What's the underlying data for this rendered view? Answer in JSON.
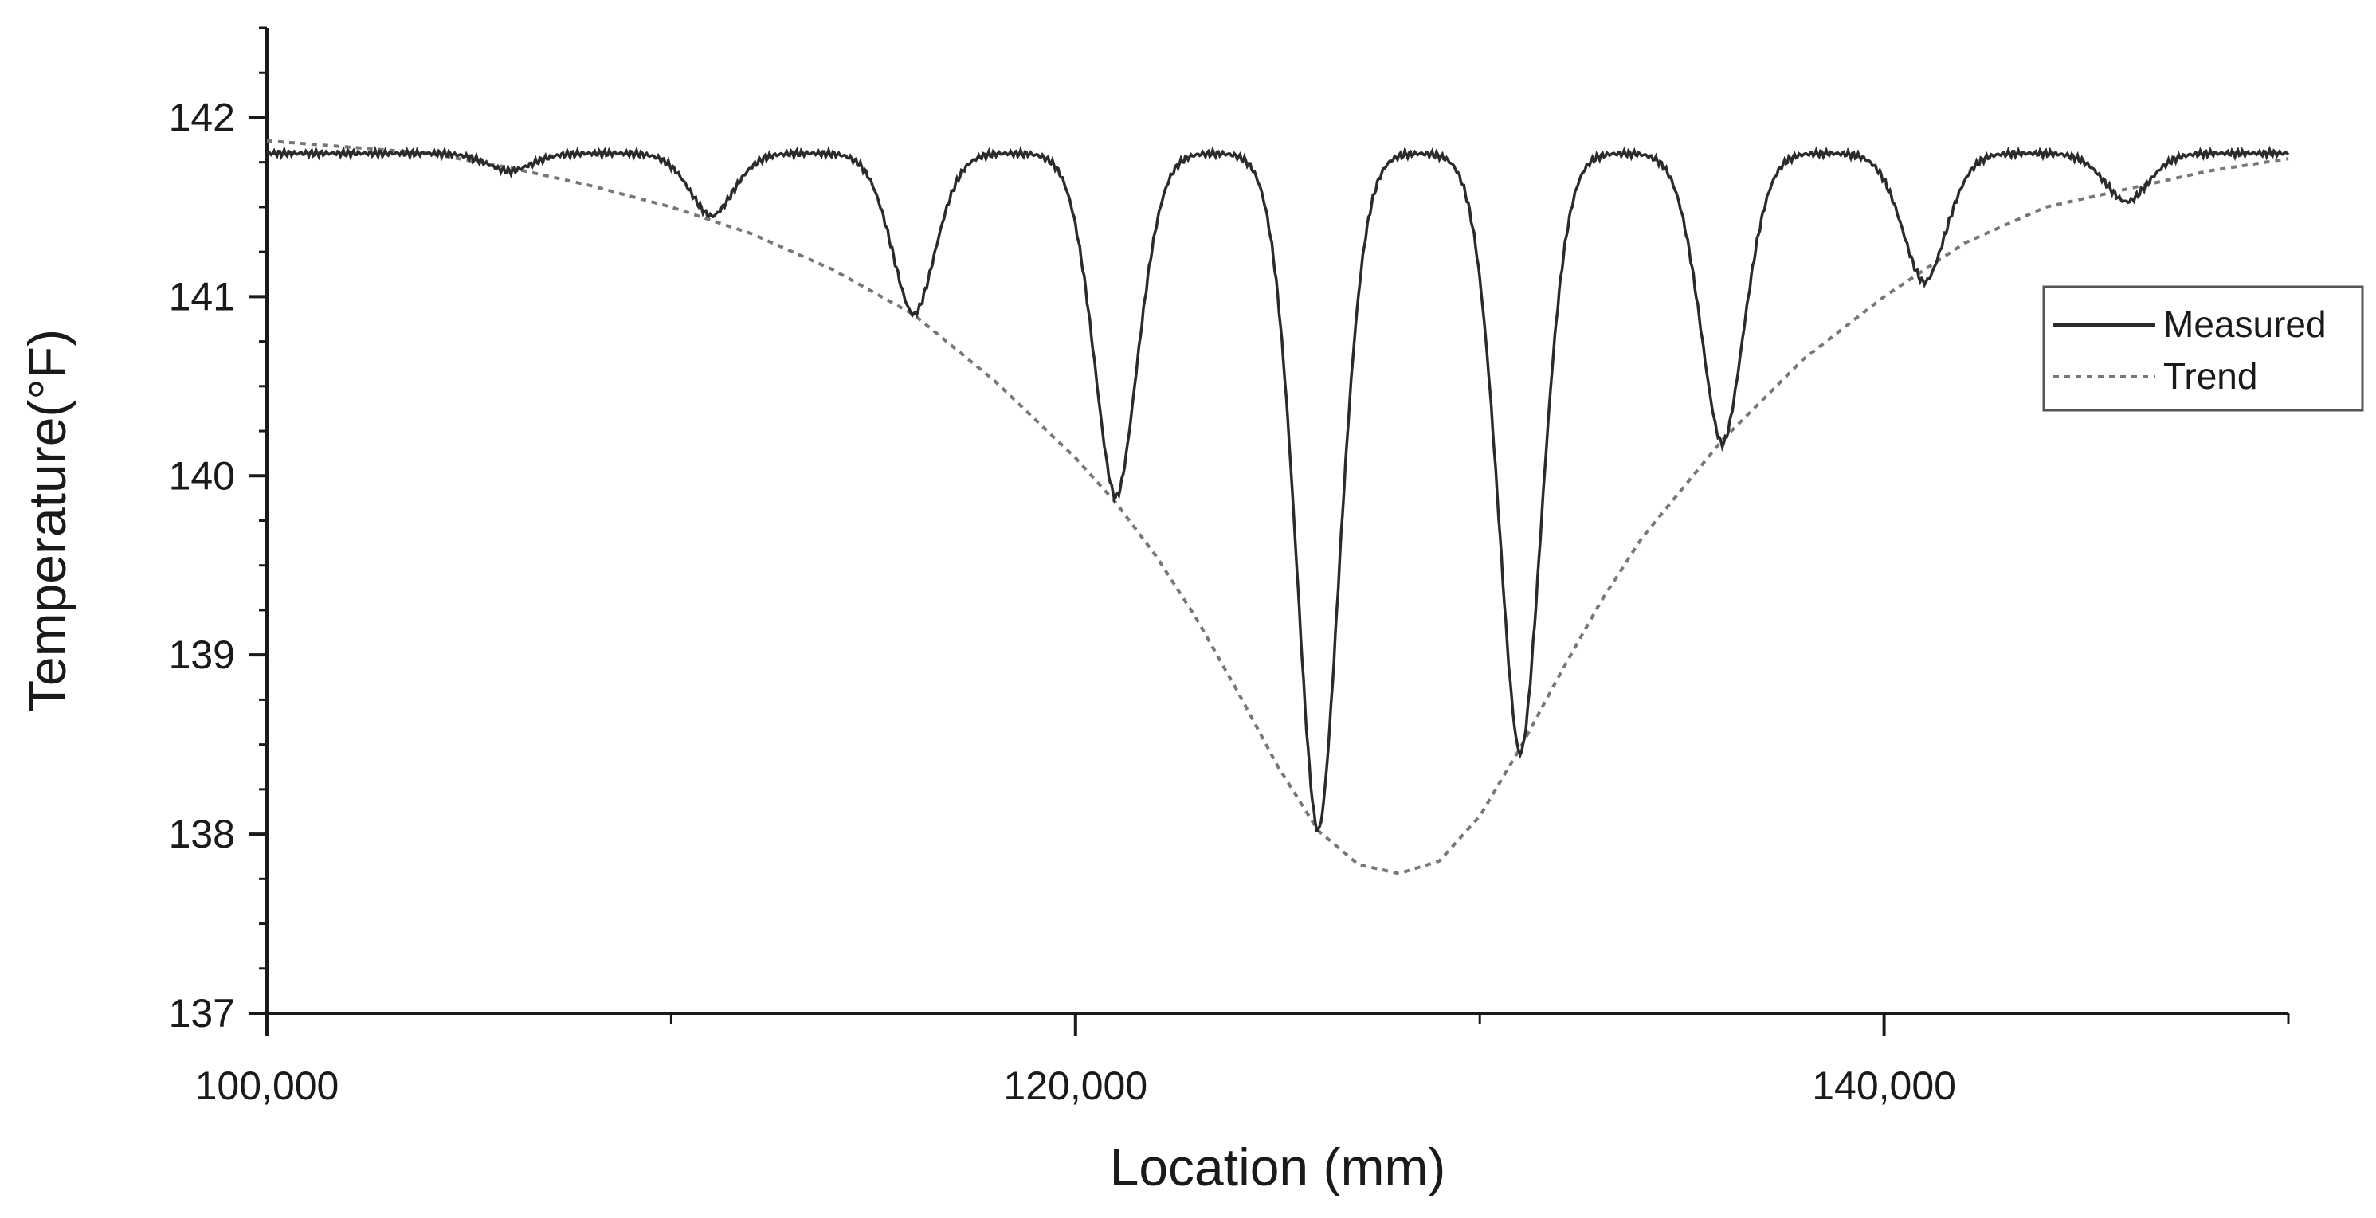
{
  "chart_data": {
    "type": "line",
    "title": "",
    "xlabel": "Location (mm)",
    "ylabel": "Temperature(°F)",
    "xlim": [
      100000,
      150000
    ],
    "ylim": [
      137,
      142.5
    ],
    "x_ticks": [
      {
        "value": 100000,
        "label": "100,000"
      },
      {
        "value": 120000,
        "label": "120,000"
      },
      {
        "value": 140000,
        "label": "140,000"
      }
    ],
    "x_minor_ticks": [
      110000,
      130000,
      150000
    ],
    "y_ticks": [
      {
        "value": 137,
        "label": "137"
      },
      {
        "value": 138,
        "label": "138"
      },
      {
        "value": 139,
        "label": "139"
      },
      {
        "value": 140,
        "label": "140"
      },
      {
        "value": 141,
        "label": "141"
      },
      {
        "value": 142,
        "label": "142"
      }
    ],
    "y_minor_step": 0.25,
    "grid": false,
    "legend_position": "right",
    "colors": {
      "measured": "#2b2b2b",
      "trend": "#777777",
      "axis": "#1a1a1a"
    },
    "series": [
      {
        "name": "Measured",
        "style": "solid",
        "baseline": 141.8,
        "dips": [
          {
            "x": 106000,
            "y": 141.7
          },
          {
            "x": 111000,
            "y": 141.45
          },
          {
            "x": 116000,
            "y": 140.9
          },
          {
            "x": 121000,
            "y": 139.88
          },
          {
            "x": 126000,
            "y": 138.02
          },
          {
            "x": 131000,
            "y": 138.45
          },
          {
            "x": 136000,
            "y": 140.18
          },
          {
            "x": 141000,
            "y": 141.08
          },
          {
            "x": 146000,
            "y": 141.53
          }
        ]
      },
      {
        "name": "Trend",
        "style": "dashed",
        "x": [
          100000,
          104000,
          106000,
          108000,
          110000,
          112000,
          114000,
          116000,
          118000,
          120000,
          121000,
          122000,
          123000,
          124000,
          125000,
          126000,
          127000,
          128000,
          129000,
          130000,
          131000,
          132000,
          133000,
          134000,
          136000,
          138000,
          140000,
          142000,
          144000,
          146000,
          148000,
          150000
        ],
        "y": [
          141.87,
          141.8,
          141.72,
          141.62,
          141.5,
          141.35,
          141.15,
          140.9,
          140.53,
          140.1,
          139.85,
          139.55,
          139.2,
          138.8,
          138.38,
          138.02,
          137.83,
          137.78,
          137.85,
          138.1,
          138.48,
          138.9,
          139.3,
          139.65,
          140.2,
          140.65,
          141.0,
          141.3,
          141.5,
          141.6,
          141.7,
          141.77
        ]
      }
    ]
  }
}
